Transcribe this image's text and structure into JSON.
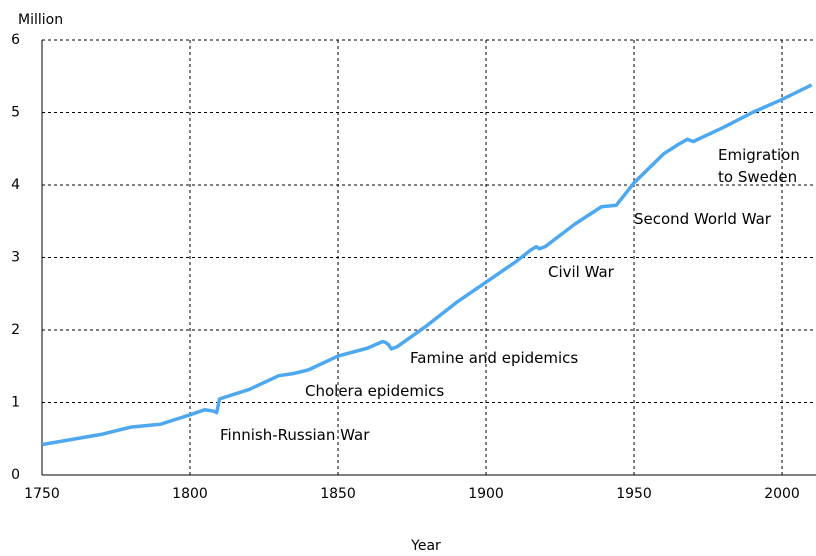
{
  "chart_data": {
    "type": "line",
    "y_label": "Million",
    "x_label": "Year",
    "x": [
      1750,
      1760,
      1770,
      1780,
      1790,
      1800,
      1805,
      1808,
      1809,
      1810,
      1820,
      1830,
      1835,
      1840,
      1850,
      1860,
      1865,
      1866,
      1867,
      1868,
      1870,
      1880,
      1890,
      1900,
      1910,
      1915,
      1917,
      1918,
      1920,
      1930,
      1939,
      1944,
      1950,
      1960,
      1965,
      1968,
      1970,
      1980,
      1990,
      2000,
      2010
    ],
    "series": [
      {
        "color": "#4ea8f0",
        "values": [
          0.42,
          0.49,
          0.56,
          0.66,
          0.7,
          0.83,
          0.9,
          0.88,
          0.86,
          1.05,
          1.18,
          1.37,
          1.4,
          1.45,
          1.64,
          1.75,
          1.84,
          1.83,
          1.8,
          1.74,
          1.77,
          2.06,
          2.38,
          2.66,
          2.94,
          3.1,
          3.15,
          3.12,
          3.15,
          3.46,
          3.7,
          3.72,
          4.03,
          4.43,
          4.56,
          4.63,
          4.6,
          4.79,
          5.0,
          5.18,
          5.38
        ]
      }
    ],
    "xlim": [
      1750,
      2011
    ],
    "xticks": [
      1750,
      1800,
      1850,
      1900,
      1950,
      2000
    ],
    "ylim": [
      0,
      6
    ],
    "yticks": [
      0,
      1,
      2,
      3,
      4,
      5,
      6
    ],
    "grid": true,
    "annotations": [
      "Finnish-Russian War",
      "Cholera epidemics",
      "Famine and epidemics",
      "Civil War",
      "Second World War",
      "Emigration\nto Sweden"
    ]
  }
}
